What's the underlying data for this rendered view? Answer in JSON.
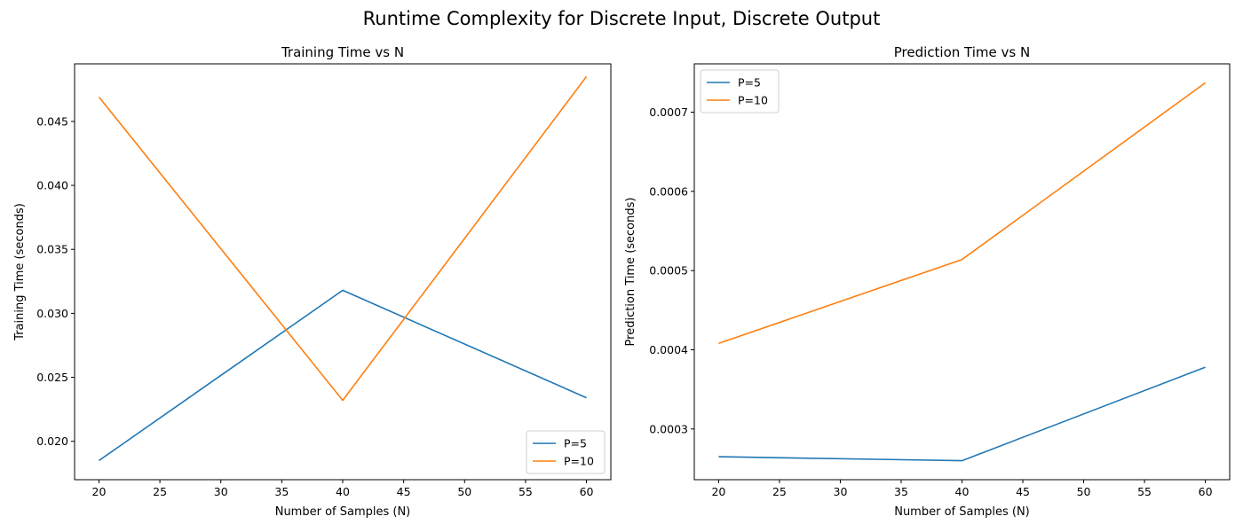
{
  "figure": {
    "title": "Runtime Complexity for Discrete Input, Discrete Output"
  },
  "chart_data": [
    {
      "type": "line",
      "title": "Training Time vs N",
      "xlabel": "Number of Samples (N)",
      "ylabel": "Training Time (seconds)",
      "x": [
        20,
        40,
        60
      ],
      "xlim": [
        18,
        62
      ],
      "ylim": [
        0.017,
        0.0495
      ],
      "xticks": [
        20,
        25,
        30,
        35,
        40,
        45,
        50,
        55,
        60
      ],
      "yticks": [
        0.02,
        0.025,
        0.03,
        0.035,
        0.04,
        0.045
      ],
      "ytick_decimals": 3,
      "legend_position": "lower right",
      "series": [
        {
          "name": "P=5",
          "color": "#1f77b4",
          "values": [
            0.0185,
            0.0318,
            0.0234
          ]
        },
        {
          "name": "P=10",
          "color": "#ff7f0e",
          "values": [
            0.0469,
            0.0232,
            0.0485
          ]
        }
      ]
    },
    {
      "type": "line",
      "title": "Prediction Time vs N",
      "xlabel": "Number of Samples (N)",
      "ylabel": "Prediction Time (seconds)",
      "x": [
        20,
        40,
        60
      ],
      "xlim": [
        18,
        62
      ],
      "ylim": [
        0.000236,
        0.000761
      ],
      "xticks": [
        20,
        25,
        30,
        35,
        40,
        45,
        50,
        55,
        60
      ],
      "yticks": [
        0.0003,
        0.0004,
        0.0005,
        0.0006,
        0.0007
      ],
      "ytick_decimals": 4,
      "legend_position": "upper left",
      "series": [
        {
          "name": "P=5",
          "color": "#1f77b4",
          "values": [
            0.000265,
            0.00026,
            0.000378
          ]
        },
        {
          "name": "P=10",
          "color": "#ff7f0e",
          "values": [
            0.000408,
            0.000514,
            0.000737
          ]
        }
      ]
    }
  ]
}
